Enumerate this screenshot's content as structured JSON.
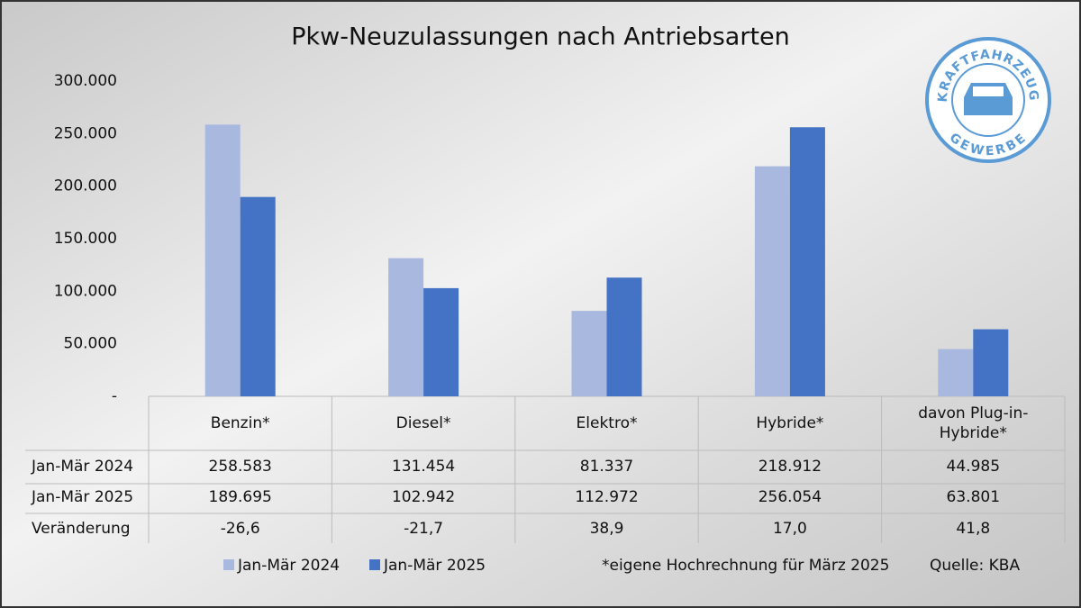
{
  "chart_data": {
    "type": "bar",
    "title": "Pkw-Neuzulassungen nach Antriebsarten",
    "categories": [
      "Benzin*",
      "Diesel*",
      "Elektro*",
      "Hybride*",
      "davon Plug-in-Hybride*"
    ],
    "series": [
      {
        "name": "Jan-Mär 2024",
        "color": "#a9b8de",
        "values": [
          258583,
          131454,
          81337,
          218912,
          44985
        ],
        "value_labels": [
          "258.583",
          "131.454",
          "81.337",
          "218.912",
          "44.985"
        ]
      },
      {
        "name": "Jan-Mär 2025",
        "color": "#4472c4",
        "values": [
          189695,
          102942,
          112972,
          256054,
          63801
        ],
        "value_labels": [
          "189.695",
          "102.942",
          "112.972",
          "256.054",
          "63.801"
        ]
      }
    ],
    "change": {
      "name": "Veränderung",
      "values": [
        -26.6,
        -21.7,
        38.9,
        17.0,
        41.8
      ],
      "value_labels": [
        "-26,6",
        "-21,7",
        "38,9",
        "17,0",
        "41,8"
      ]
    },
    "ylim": [
      0,
      300000
    ],
    "yticks": [
      {
        "value": 0,
        "label": "-"
      },
      {
        "value": 50000,
        "label": "50.000"
      },
      {
        "value": 100000,
        "label": "100.000"
      },
      {
        "value": 150000,
        "label": "150.000"
      },
      {
        "value": 200000,
        "label": "200.000"
      },
      {
        "value": 250000,
        "label": "250.000"
      },
      {
        "value": 300000,
        "label": "300.000"
      }
    ],
    "grid": false,
    "note": "*eigene Hochrechnung für März 2025",
    "source": "Quelle: KBA",
    "logo": {
      "top": "KRAFTFAHRZEUG",
      "bottom": "GEWERBE"
    }
  }
}
